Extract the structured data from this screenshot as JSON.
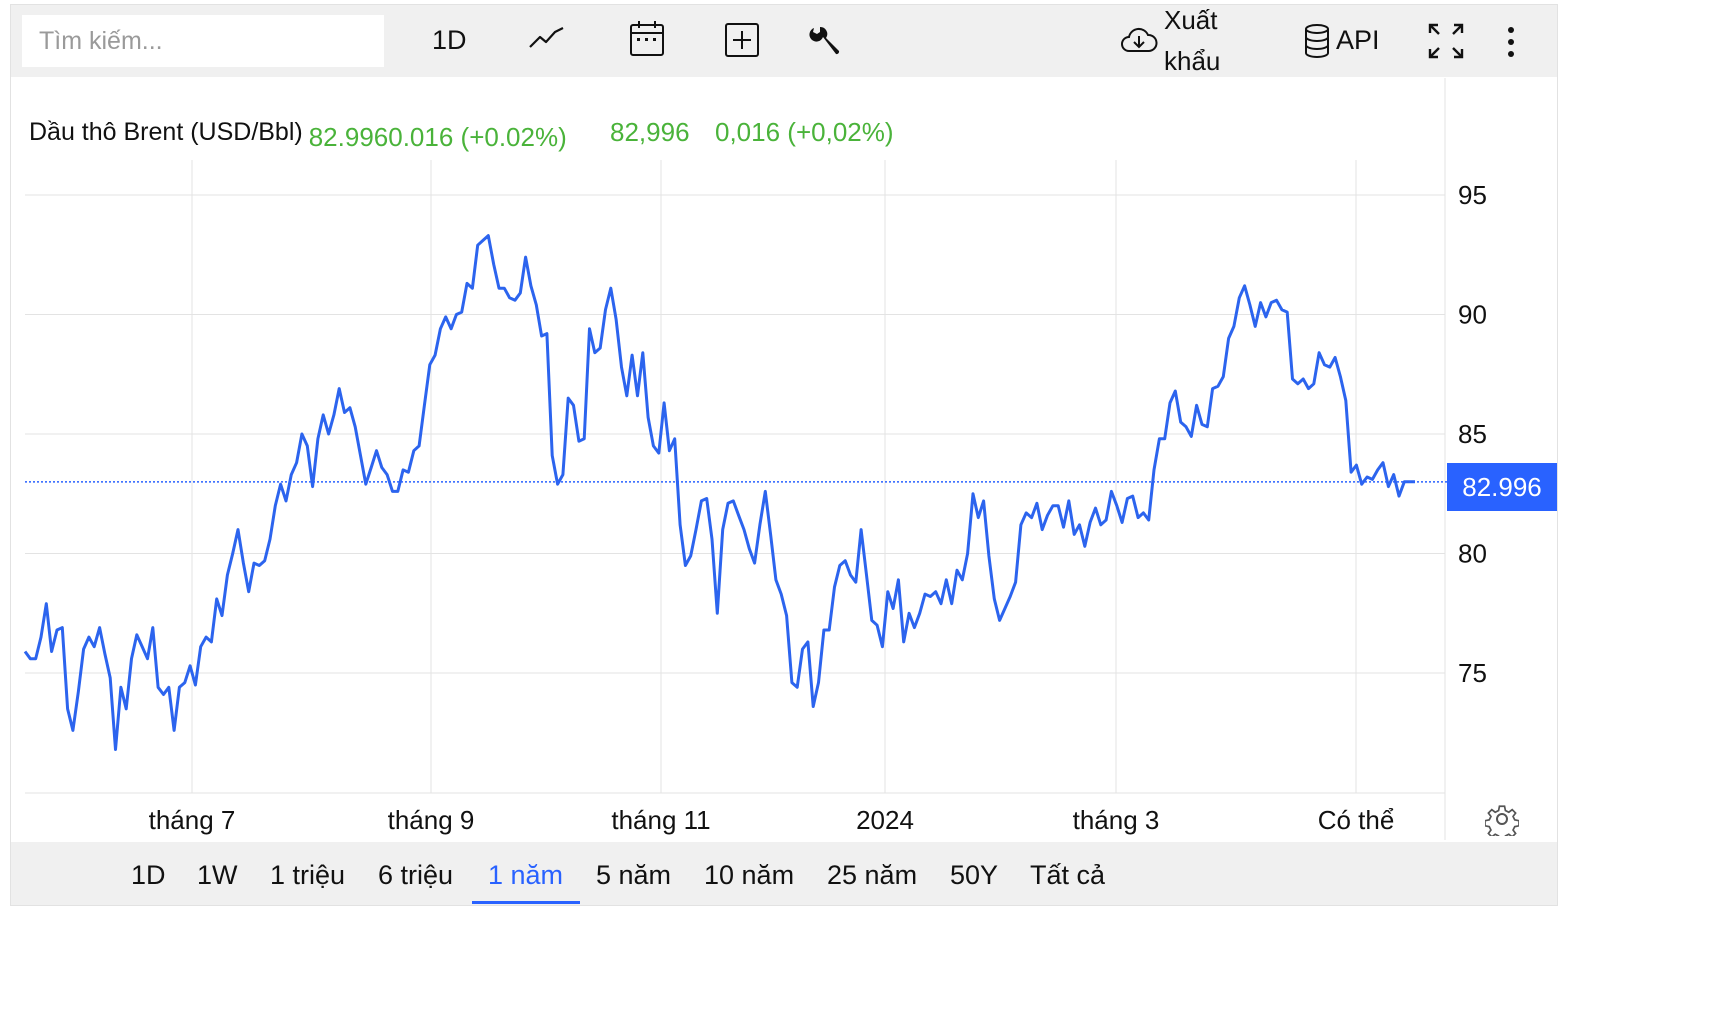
{
  "toolbar": {
    "search_placeholder": "Tìm kiếm...",
    "interval_label": "1D",
    "export_line1": "Xuất",
    "export_line2": "khẩu",
    "api_label": "API"
  },
  "title": {
    "name": "Dầu thô Brent (USD/Bbl)",
    "combined": "82.9960.016 (+0.02%)",
    "price": "82,996",
    "change": "0,016 (+0,02%)"
  },
  "price_tag": "82.996",
  "colors": {
    "line": "#2c64ee",
    "up": "#4ab33a",
    "accent": "#2962ff",
    "grid": "#e3e3e3"
  },
  "icons": [
    "line-chart-icon",
    "calendar-icon",
    "add-compare-icon",
    "wrench-icon",
    "cloud-download-icon",
    "database-icon",
    "fullscreen-icon",
    "more-vertical-icon",
    "gear-icon"
  ],
  "range_buttons": [
    "1D",
    "1W",
    "1 triệu",
    "6 triệu",
    "1 năm",
    "5 năm",
    "10 năm",
    "25 năm",
    "50Y",
    "Tất cả"
  ],
  "active_range": "1 năm",
  "chart_data": {
    "type": "line",
    "title": "Dầu thô Brent (USD/Bbl)",
    "ylim": [
      70,
      97
    ],
    "yticks": [
      75,
      80,
      85,
      90,
      95
    ],
    "xtick_labels": [
      "tháng 7",
      "tháng 9",
      "tháng 11",
      "2024",
      "tháng 3",
      "Có thể"
    ],
    "last_value": 82.996,
    "grid": true,
    "series": [
      {
        "values": [
          75.9,
          75.6,
          75.6,
          76.5,
          77.9,
          75.9,
          76.8,
          76.9,
          73.5,
          72.6,
          74.2,
          76.0,
          76.5,
          76.1,
          76.9,
          75.8,
          74.8,
          71.8,
          74.4,
          73.5,
          75.6,
          76.6,
          76.1,
          75.6,
          76.9,
          74.4,
          74.1,
          74.4,
          72.6,
          74.4,
          74.6,
          75.3,
          74.5,
          76.1,
          76.5,
          76.3,
          78.1,
          77.4,
          79.1,
          80.0,
          81.0,
          79.6,
          78.4,
          79.6,
          79.5,
          79.7,
          80.6,
          82.0,
          82.9,
          82.2,
          83.3,
          83.8,
          85.0,
          84.5,
          82.8,
          84.8,
          85.8,
          85.0,
          85.8,
          86.9,
          85.9,
          86.1,
          85.3,
          84.1,
          82.9,
          83.6,
          84.3,
          83.6,
          83.3,
          82.6,
          82.6,
          83.5,
          83.4,
          84.3,
          84.5,
          86.2,
          87.9,
          88.3,
          89.4,
          89.9,
          89.4,
          90.0,
          90.1,
          91.3,
          91.1,
          92.9,
          93.1,
          93.3,
          92.1,
          91.1,
          91.1,
          90.7,
          90.6,
          90.9,
          92.4,
          91.2,
          90.4,
          89.1,
          89.2,
          84.1,
          82.9,
          83.3,
          86.5,
          86.2,
          84.7,
          84.8,
          89.4,
          88.4,
          88.6,
          90.2,
          91.1,
          89.8,
          87.8,
          86.6,
          88.3,
          86.6,
          88.4,
          85.7,
          84.5,
          84.2,
          86.3,
          84.3,
          84.8,
          81.2,
          79.5,
          79.9,
          81.0,
          82.2,
          82.3,
          80.6,
          77.5,
          81.0,
          82.1,
          82.2,
          81.6,
          81.0,
          80.2,
          79.6,
          81.2,
          82.6,
          80.8,
          78.9,
          78.3,
          77.4,
          74.6,
          74.4,
          76.0,
          76.3,
          73.6,
          74.6,
          76.8,
          76.8,
          78.6,
          79.5,
          79.7,
          79.1,
          78.8,
          81.0,
          79.1,
          77.2,
          77.0,
          76.1,
          78.4,
          77.7,
          78.9,
          76.3,
          77.5,
          76.9,
          77.5,
          78.3,
          78.2,
          78.4,
          77.9,
          78.9,
          77.9,
          79.3,
          78.9,
          80.0,
          82.5,
          81.5,
          82.2,
          79.9,
          78.1,
          77.2,
          77.7,
          78.2,
          78.8,
          81.2,
          81.7,
          81.5,
          82.1,
          81.0,
          81.6,
          82.0,
          82.0,
          81.1,
          82.2,
          80.8,
          81.2,
          80.3,
          81.3,
          81.9,
          81.2,
          81.4,
          82.6,
          82.0,
          81.3,
          82.3,
          82.4,
          81.5,
          81.7,
          81.4,
          83.5,
          84.8,
          84.8,
          86.3,
          86.8,
          85.5,
          85.3,
          84.9,
          86.2,
          85.4,
          85.3,
          86.9,
          87.0,
          87.4,
          89.0,
          89.5,
          90.7,
          91.2,
          90.4,
          89.5,
          90.5,
          89.9,
          90.5,
          90.6,
          90.2,
          90.1,
          87.3,
          87.1,
          87.3,
          86.9,
          87.1,
          88.4,
          87.9,
          87.8,
          88.2,
          87.4,
          86.4,
          83.4,
          83.7,
          82.9,
          83.2,
          83.1,
          83.5,
          83.8,
          82.8,
          83.3,
          82.4,
          83.0,
          83.0,
          83.0
        ]
      }
    ]
  }
}
